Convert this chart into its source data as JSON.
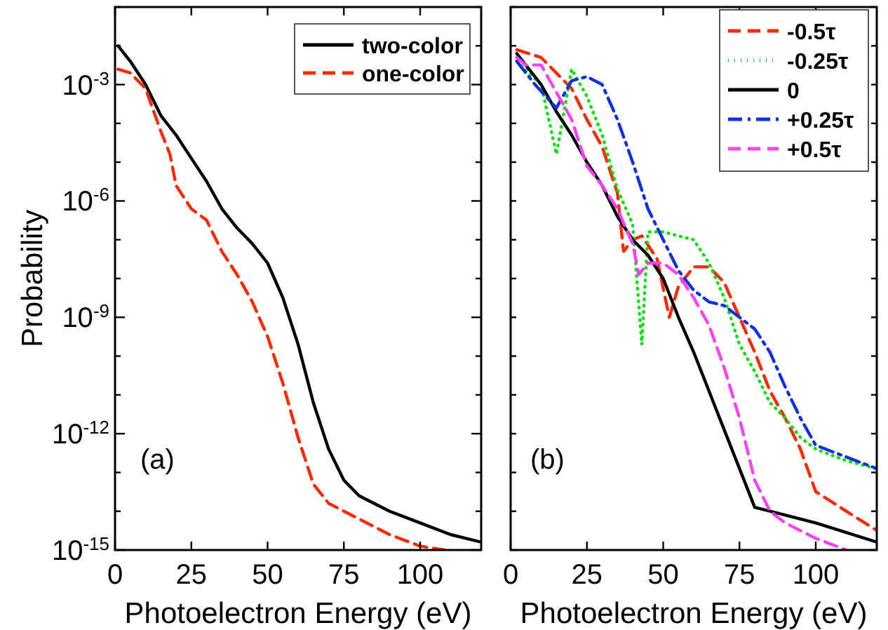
{
  "chart_data": [
    {
      "type": "line",
      "xlabel": "Photoelectron Energy (eV)",
      "ylabel": "Probability",
      "log": "y",
      "xlim": [
        0,
        120
      ],
      "ylim": [
        1e-15,
        0.1
      ],
      "xticks": [
        0,
        25,
        50,
        75,
        100
      ],
      "yticks": [
        {
          "value": 1e-15,
          "label": "10$^{-15}$"
        },
        {
          "value": 1e-14,
          "label": null
        },
        {
          "value": 1e-13,
          "label": null
        },
        {
          "value": 1e-12,
          "label": "10$^{-12}$"
        },
        {
          "value": 1e-11,
          "label": null
        },
        {
          "value": 1e-10,
          "label": null
        },
        {
          "value": 1e-09,
          "label": "10$^{-9}$"
        },
        {
          "value": 1e-08,
          "label": null
        },
        {
          "value": 1e-07,
          "label": null
        },
        {
          "value": 1e-06,
          "label": "10$^{-6}$"
        },
        {
          "value": 1e-05,
          "label": null
        },
        {
          "value": 0.0001,
          "label": null
        },
        {
          "value": 0.001,
          "label": "10$^{-3}$"
        },
        {
          "value": 0.01,
          "label": null
        },
        {
          "value": 0.1,
          "label": null
        }
      ],
      "legend": "top right",
      "grid": false,
      "annotations": [
        "(a)"
      ],
      "series": [
        {
          "name": "two-color",
          "color": "#000000",
          "line_style": "solid",
          "x": [
            1,
            5,
            10,
            15,
            20,
            25,
            30,
            35,
            40,
            45,
            50,
            55,
            60,
            65,
            70,
            75,
            80,
            90,
            100,
            110,
            120
          ],
          "values": [
            0.01,
            0.004,
            0.001,
            0.00016,
            5e-05,
            1.26e-05,
            3.2e-06,
            6.3e-07,
            2e-07,
            7.9e-08,
            2.5e-08,
            3.2e-09,
            2e-10,
            6.3e-12,
            4e-13,
            6.3e-14,
            2.5e-14,
            1e-14,
            5e-15,
            2.5e-15,
            1.6e-15
          ]
        },
        {
          "name": "one-color",
          "color": "#ff2a00",
          "line_style": "dashed",
          "x": [
            1,
            5,
            10,
            15,
            18,
            20,
            25,
            30,
            35,
            40,
            45,
            50,
            55,
            60,
            65,
            70,
            80,
            90,
            100,
            108
          ],
          "values": [
            0.0025,
            0.002,
            0.00079,
            6.3e-05,
            1.6e-05,
            2.5e-06,
            6.3e-07,
            3.2e-07,
            5e-08,
            1.26e-08,
            2.5e-09,
            3.2e-10,
            2e-11,
            7.9e-13,
            5e-14,
            1.6e-14,
            6.3e-15,
            2.5e-15,
            1.26e-15,
            1e-15
          ]
        }
      ]
    },
    {
      "type": "line",
      "xlabel": "Photoelectron Energy (eV)",
      "log": "y",
      "xlim": [
        0,
        120
      ],
      "ylim": [
        1e-15,
        0.1
      ],
      "tick_labels": "x",
      "xticks": [
        0,
        25,
        50,
        75,
        100
      ],
      "yticks": [
        {
          "value": 1e-15,
          "label": null
        },
        {
          "value": 1e-14,
          "label": null
        },
        {
          "value": 1e-13,
          "label": null
        },
        {
          "value": 1e-12,
          "label": null
        },
        {
          "value": 1e-11,
          "label": null
        },
        {
          "value": 1e-10,
          "label": null
        },
        {
          "value": 1e-09,
          "label": null
        },
        {
          "value": 1e-08,
          "label": null
        },
        {
          "value": 1e-07,
          "label": null
        },
        {
          "value": 1e-06,
          "label": null
        },
        {
          "value": 1e-05,
          "label": null
        },
        {
          "value": 0.0001,
          "label": null
        },
        {
          "value": 0.001,
          "label": null
        },
        {
          "value": 0.01,
          "label": null
        },
        {
          "value": 0.1,
          "label": null
        }
      ],
      "legend": "top right",
      "grid": false,
      "annotations": [
        "(b)"
      ],
      "series": [
        {
          "name": "-0.5τ",
          "color": "#ff2a00",
          "line_style": "dashed",
          "x": [
            2,
            10,
            20,
            25,
            30,
            35,
            37,
            40,
            43,
            48,
            52,
            55,
            60,
            65,
            70,
            75,
            80,
            85,
            90,
            95,
            100,
            110,
            120
          ],
          "values": [
            0.0079,
            0.005,
            0.00079,
            0.000126,
            2.5e-05,
            1.6e-06,
            5e-08,
            1e-07,
            1.26e-07,
            3.2e-08,
            1e-09,
            6.3e-09,
            2e-08,
            2e-08,
            7.9e-09,
            1e-09,
            1.26e-10,
            1.26e-11,
            2.5e-12,
            4e-13,
            3.2e-14,
            1e-14,
            3.2e-15
          ]
        },
        {
          "name": "-0.25τ",
          "color": "#00e000",
          "line_style": "dotted",
          "x": [
            2,
            10,
            15,
            20,
            25,
            30,
            35,
            40,
            43,
            45,
            50,
            55,
            60,
            65,
            70,
            75,
            80,
            85,
            90,
            95,
            100,
            110,
            120
          ],
          "values": [
            0.004,
            0.001,
            1.6e-05,
            0.0025,
            0.0005,
            5e-05,
            2e-06,
            2.5e-07,
            2e-10,
            1.6e-07,
            1.6e-07,
            1.26e-07,
            1e-07,
            2.5e-08,
            3.2e-09,
            2e-10,
            4e-11,
            6.3e-12,
            2.5e-12,
            7.9e-13,
            4e-13,
            2e-13,
            1.26e-13
          ]
        },
        {
          "name": "0",
          "color": "#000000",
          "line_style": "solid",
          "x": [
            2,
            10,
            15,
            20,
            25,
            30,
            35,
            40,
            45,
            50,
            55,
            60,
            65,
            70,
            75,
            80,
            85,
            100,
            120
          ],
          "values": [
            0.0063,
            0.001,
            0.0002,
            5e-05,
            1e-05,
            2.5e-06,
            4e-07,
            1e-07,
            4e-08,
            1e-08,
            1e-09,
            1.26e-10,
            1.26e-11,
            1.26e-12,
            1.26e-13,
            1.26e-14,
            1e-14,
            5e-15,
            1.6e-15
          ]
        },
        {
          "name": "+0.25τ",
          "color": "#1030e0",
          "line_style": "dashdot",
          "x": [
            2,
            8,
            15,
            20,
            25,
            30,
            35,
            40,
            45,
            50,
            55,
            60,
            65,
            70,
            75,
            80,
            85,
            90,
            95,
            100,
            110,
            120
          ],
          "values": [
            0.004,
            0.001,
            0.00025,
            0.00126,
            0.0016,
            0.001,
            0.000126,
            1e-05,
            6.3e-07,
            1e-07,
            1.6e-08,
            5e-09,
            2.5e-09,
            2e-09,
            1e-09,
            5e-10,
            1.26e-10,
            1.6e-11,
            2.5e-12,
            5e-13,
            2.5e-13,
            1.26e-13
          ]
        },
        {
          "name": "+0.5τ",
          "color": "#ff40ff",
          "line_style": "dashed",
          "x": [
            2,
            5,
            10,
            15,
            20,
            25,
            30,
            35,
            40,
            42,
            45,
            50,
            55,
            60,
            65,
            70,
            75,
            80,
            85,
            90,
            100,
            110
          ],
          "values": [
            0.005,
            0.0032,
            0.0032,
            0.00063,
            0.000126,
            7.9e-06,
            2.5e-06,
            6.3e-07,
            7.9e-08,
            1.26e-08,
            2.5e-08,
            2.5e-08,
            1.26e-08,
            3.2e-09,
            6.3e-10,
            5e-11,
            2.5e-12,
            6.3e-14,
            1e-14,
            5e-15,
            2e-15,
            1e-15
          ]
        }
      ]
    }
  ]
}
